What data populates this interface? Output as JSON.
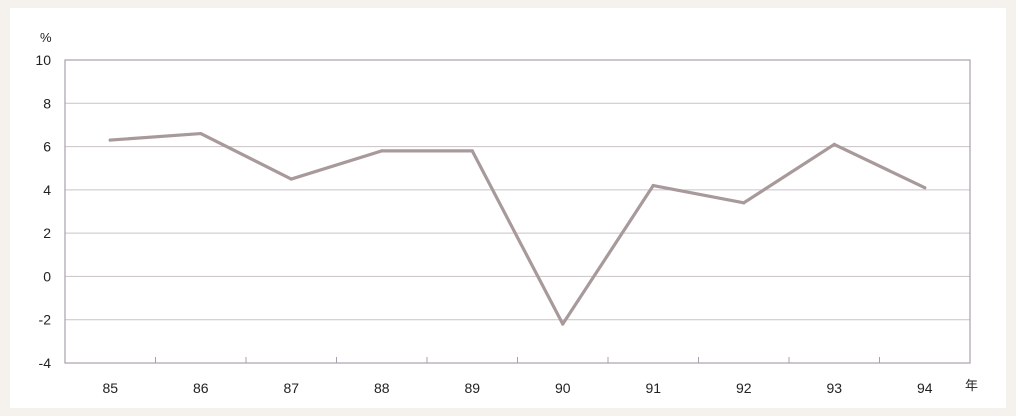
{
  "chart_data": {
    "type": "line",
    "y_unit": "%",
    "x_unit": "年",
    "categories": [
      "85",
      "86",
      "87",
      "88",
      "89",
      "90",
      "91",
      "92",
      "93",
      "94"
    ],
    "series": [
      {
        "values": [
          6.3,
          6.6,
          4.5,
          5.8,
          5.8,
          -2.2,
          4.2,
          3.4,
          6.1,
          4.1
        ]
      }
    ],
    "ylim": [
      -4,
      10
    ],
    "y_ticks": [
      10,
      8,
      6,
      4,
      2,
      0,
      -2,
      -4
    ],
    "grid": true,
    "line_color": "#a89a9b",
    "grid_color": "#c9c3c6",
    "frame_color": "#a9a0ad"
  }
}
